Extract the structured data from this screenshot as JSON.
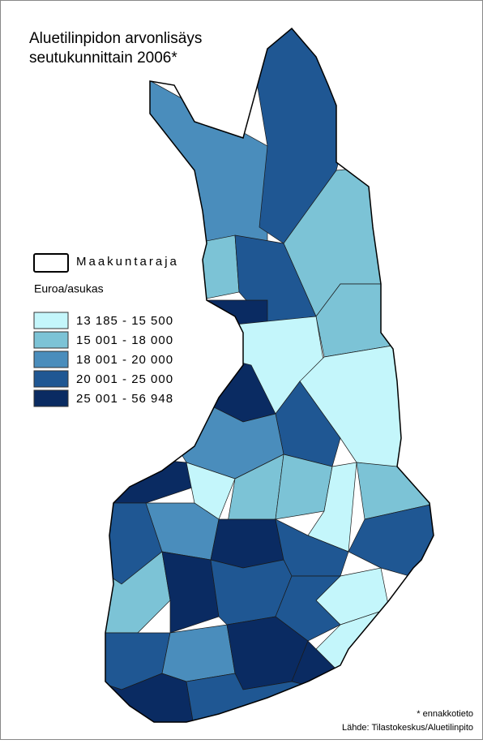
{
  "title": [
    "Aluetilinpidon arvonlisäys",
    "seutukunnittain 2006*"
  ],
  "legend": {
    "boundary": "Maakuntaraja",
    "heading": "Euroa/asukas",
    "classes": [
      {
        "label": "13 185 - 15 500",
        "color": "#c4f6fb"
      },
      {
        "label": "15 001 - 18 000",
        "color": "#7cc3d6"
      },
      {
        "label": "18 001 - 20 000",
        "color": "#4a8dbc"
      },
      {
        "label": "20 001 - 25 000",
        "color": "#1f5793"
      },
      {
        "label": "25 001 - 56 948",
        "color": "#0a2b62"
      }
    ]
  },
  "footnote": "* ennakkotieto",
  "source": "Lähde: Tilastokeskus/Aluetilinpito"
}
